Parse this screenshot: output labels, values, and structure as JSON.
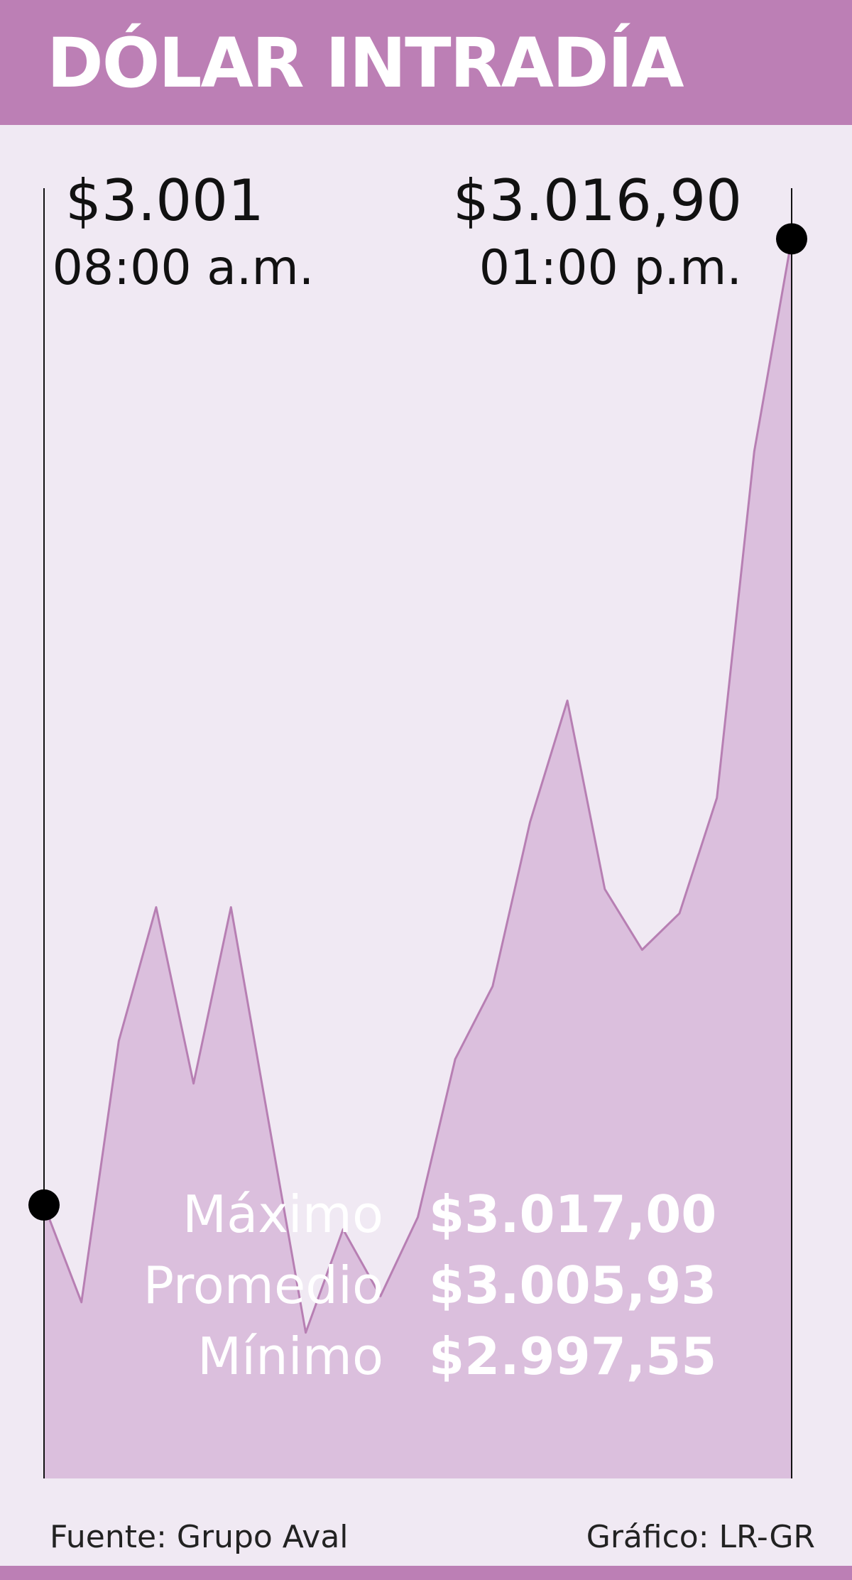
{
  "header": {
    "title": "DÓLAR INTRADÍA"
  },
  "chart_data": {
    "type": "area",
    "start": {
      "value_label": "$3.001",
      "time_label": "08:00 a.m."
    },
    "end": {
      "value_label": "$3.016,90",
      "time_label": "01:00 p.m."
    },
    "x": [
      "08:00 a.m.",
      "08:15",
      "08:30",
      "08:45",
      "09:00",
      "09:15",
      "09:30",
      "09:45",
      "10:00",
      "10:15",
      "10:30",
      "10:45",
      "11:00",
      "11:15",
      "11:30",
      "11:45",
      "12:00",
      "12:15",
      "12:30",
      "12:45",
      "01:00 p.m."
    ],
    "y": [
      3001.0,
      2999.4,
      3003.7,
      3005.9,
      3003.0,
      3005.9,
      3002.4,
      2998.9,
      3000.6,
      2999.5,
      3000.8,
      3003.4,
      3004.6,
      3007.3,
      3009.3,
      3006.2,
      3005.2,
      3005.8,
      3007.7,
      3013.4,
      3016.9
    ],
    "ylim": [
      2996.5,
      3017.5
    ],
    "stats": [
      {
        "label": "Máximo",
        "value": "$3.017,00"
      },
      {
        "label": "Promedio",
        "value": "$3.005,93"
      },
      {
        "label": "Mínimo",
        "value": "$2.997,55"
      }
    ],
    "colors": {
      "line": "#b77fb3",
      "fill": "#dbbfdd",
      "background": "#f0e9f3",
      "marker": "#000000"
    }
  },
  "footer": {
    "source": "Fuente: Grupo Aval",
    "credit": "Gráfico: LR-GR"
  }
}
